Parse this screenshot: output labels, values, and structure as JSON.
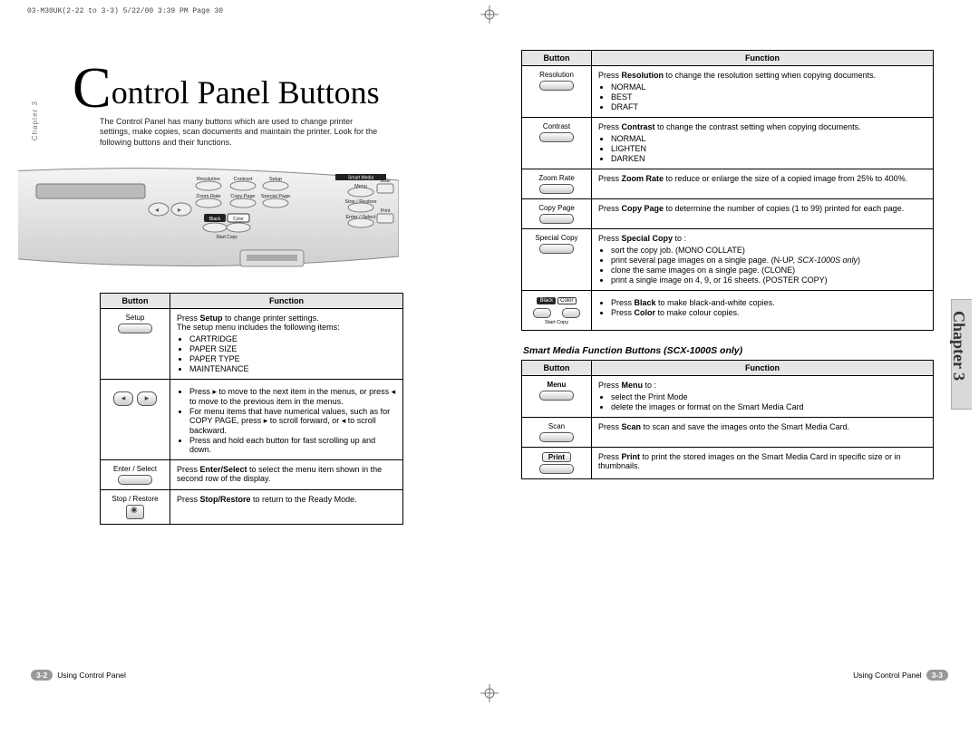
{
  "slug": "03-M30UK(2-22 to 3-3)  5/22/00 3:39 PM  Page 30",
  "chapter_tab": "Chapter 3",
  "title_dropcap": "C",
  "title_rest": "ontrol Panel Buttons",
  "intro": "The Control Panel has many buttons which are used to change printer settings, make copies, scan documents and maintain the printer. Look for the following buttons and their functions.",
  "panel_labels": {
    "row1": [
      "Resolution",
      "Contrast",
      "Setup"
    ],
    "row2": [
      "Zoom Rate",
      "Copy Page",
      "Special Page"
    ],
    "row3": [
      "Black",
      "Color"
    ],
    "start": "Start Copy",
    "sm_head": "Smart Media",
    "sm": [
      "Menu",
      "Stop / Restore",
      "Enter / Select"
    ],
    "scan": "Scan",
    "print": "Print"
  },
  "table_headers": {
    "button": "Button",
    "function": "Function"
  },
  "left_rows": [
    {
      "button_label": "Setup",
      "content_html": "Press <b>Setup</b> to change printer settings.<br>The setup menu includes the following items:",
      "bullets": [
        "CARTRIDGE",
        "PAPER SIZE",
        "PAPER TYPE",
        "MAINTENANCE"
      ]
    },
    {
      "button_label": "arrows",
      "bullets": [
        "Press ▸ to move to the next item in the menus, or press ◂ to move to the previous item in the menus.",
        "For menu items that have numerical values, such as for COPY PAGE, press ▸ to scroll forward, or ◂ to scroll backward.",
        "Press and hold each button for fast scrolling up and down."
      ]
    },
    {
      "button_label": "Enter / Select",
      "content_html": "Press <b>Enter/Select</b> to select the menu item shown in the second row of the display."
    },
    {
      "button_label": "Stop / Restore",
      "content_html": "Press <b>Stop/Restore</b> to return to the Ready Mode."
    }
  ],
  "right_rows_a": [
    {
      "button_label": "Resolution",
      "content_html": "Press <b>Resolution</b> to change the resolution setting when copying documents.",
      "bullets": [
        "NORMAL",
        "BEST",
        "DRAFT"
      ]
    },
    {
      "button_label": "Contrast",
      "content_html": "Press <b>Contrast</b> to change the contrast setting when copying documents.",
      "bullets": [
        "NORMAL",
        "LIGHTEN",
        "DARKEN"
      ]
    },
    {
      "button_label": "Zoom Rate",
      "content_html": "Press <b>Zoom Rate</b> to reduce or enlarge the size of a copied image from 25% to 400%."
    },
    {
      "button_label": "Copy Page",
      "content_html": "Press <b>Copy Page</b> to determine the number of copies (1 to 99) printed for each page."
    },
    {
      "button_label": "Special Copy",
      "content_html": "Press <b>Special Copy</b> to :",
      "bullets": [
        "sort the copy job. (MONO COLLATE)",
        "print several page images on a single page. (N-UP, <i>SCX-1000S only</i>)",
        "clone the same images on a single page. (CLONE)",
        "print a single image on 4, 9, or 16 sheets. (POSTER COPY)"
      ]
    },
    {
      "button_label": "blackcolor",
      "bullets": [
        "Press <b>Black</b> to make black-and-white copies.",
        "Press <b>Color</b> to make colour copies."
      ]
    }
  ],
  "sm_subhead": "Smart Media Function Buttons (SCX-1000S only)",
  "right_rows_b": [
    {
      "button_label": "Menu",
      "bold_label": true,
      "content_html": "Press <b>Menu</b> to :",
      "bullets": [
        "select the Print Mode",
        "delete the images or format on the Smart Media Card"
      ]
    },
    {
      "button_label": "Scan",
      "content_html": "Press <b>Scan</b> to scan and save the images onto the Smart Media Card."
    },
    {
      "button_label": "Print",
      "bold_label": true,
      "underline": true,
      "content_html": "Press <b>Print</b> to print the stored images on the Smart Media Card in specific size or in thumbnails."
    }
  ],
  "footer_left_num": "3-2",
  "footer_left_text": "Using Control Panel",
  "footer_right_text": "Using Control Panel",
  "footer_right_num": "3-3"
}
